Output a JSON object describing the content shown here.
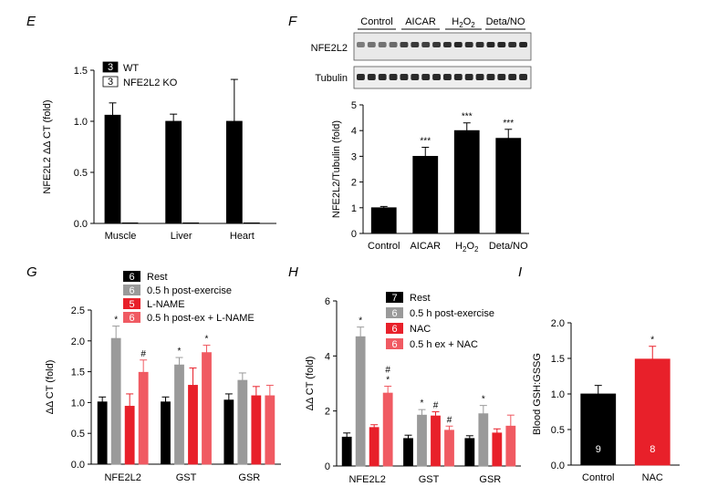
{
  "chart_data": [
    {
      "panel": "E",
      "type": "bar",
      "ylabel": "NFE2L2 ΔΔ CT (fold)",
      "ylim": [
        0,
        1.5
      ],
      "yticks": [
        "0.0",
        "0.5",
        "1.0",
        "1.5"
      ],
      "categories": [
        "Muscle",
        "Liver",
        "Heart"
      ],
      "series": [
        {
          "name": "WT",
          "n": "3",
          "color": "#000000",
          "values": [
            1.06,
            1.0,
            1.0
          ],
          "errors": [
            0.12,
            0.07,
            0.41
          ]
        },
        {
          "name": "NFE2L2 KO",
          "n": "3",
          "color": "#ffffff",
          "values": [
            0.005,
            0.005,
            0.005
          ],
          "errors": [
            0,
            0,
            0
          ]
        }
      ],
      "legend": "top-left"
    },
    {
      "panel": "F",
      "type": "bar",
      "blot_groups": [
        "Control",
        "AICAR",
        "H2O2",
        "Deta/NO"
      ],
      "blot_rows": [
        "NFE2L2",
        "Tubulin"
      ],
      "ylabel": "NFE2L2/Tubulin (fold)",
      "ylim": [
        0,
        5
      ],
      "yticks": [
        "0",
        "1",
        "2",
        "3",
        "4",
        "5"
      ],
      "categories": [
        "Control",
        "AICAR",
        "H2O2",
        "Deta/NO"
      ],
      "values": [
        1.0,
        3.0,
        4.0,
        3.7
      ],
      "errors": [
        0.05,
        0.35,
        0.3,
        0.35
      ],
      "annotations": [
        "",
        "***",
        "***",
        "***"
      ]
    },
    {
      "panel": "G",
      "type": "bar",
      "ylabel": "ΔΔ CT (fold)",
      "ylim": [
        0,
        2.5
      ],
      "yticks": [
        "0.0",
        "0.5",
        "1.0",
        "1.5",
        "2.0",
        "2.5"
      ],
      "categories": [
        "NFE2L2",
        "GST",
        "GSR"
      ],
      "series": [
        {
          "name": "Rest",
          "n": "6",
          "color": "#000000",
          "values": [
            1.01,
            1.01,
            1.04
          ],
          "errors": [
            0.08,
            0.08,
            0.1
          ],
          "annotations": [
            "",
            "",
            ""
          ]
        },
        {
          "name": "0.5 h post-exercise",
          "n": "6",
          "color": "#9a9a9a",
          "values": [
            2.04,
            1.61,
            1.36
          ],
          "errors": [
            0.2,
            0.12,
            0.12
          ],
          "annotations": [
            "*",
            "*",
            ""
          ]
        },
        {
          "name": "L-NAME",
          "n": "5",
          "color": "#e8202a",
          "values": [
            0.94,
            1.28,
            1.11
          ],
          "errors": [
            0.2,
            0.28,
            0.15
          ],
          "annotations": [
            "",
            "",
            ""
          ]
        },
        {
          "name": "0.5 h post-ex + L-NAME",
          "n": "6",
          "color": "#f05a62",
          "values": [
            1.49,
            1.81,
            1.11
          ],
          "errors": [
            0.2,
            0.12,
            0.17
          ],
          "annotations": [
            "#",
            "*",
            ""
          ]
        }
      ]
    },
    {
      "panel": "H",
      "type": "bar",
      "ylabel": "ΔΔ CT (fold)",
      "ylim": [
        0,
        6
      ],
      "yticks": [
        "0",
        "2",
        "4",
        "6"
      ],
      "categories": [
        "NFE2L2",
        "GST",
        "GSR"
      ],
      "series": [
        {
          "name": "Rest",
          "n": "7",
          "color": "#000000",
          "values": [
            1.05,
            1.0,
            1.0
          ],
          "errors": [
            0.15,
            0.12,
            0.1
          ],
          "annotations": [
            "",
            "",
            ""
          ]
        },
        {
          "name": "0.5 h post-exercise",
          "n": "6",
          "color": "#9a9a9a",
          "values": [
            4.7,
            1.85,
            1.9
          ],
          "errors": [
            0.35,
            0.2,
            0.3
          ],
          "annotations": [
            "*",
            "*",
            "*"
          ]
        },
        {
          "name": "NAC",
          "n": "6",
          "color": "#e8202a",
          "values": [
            1.4,
            1.82,
            1.2
          ],
          "errors": [
            0.1,
            0.15,
            0.15
          ],
          "annotations": [
            "",
            "#",
            ""
          ]
        },
        {
          "name": "0.5 h ex + NAC",
          "n": "6",
          "color": "#f05a62",
          "values": [
            2.65,
            1.3,
            1.45
          ],
          "errors": [
            0.25,
            0.15,
            0.4
          ],
          "annotations": [
            "#\n*",
            "#",
            ""
          ]
        }
      ]
    },
    {
      "panel": "I",
      "type": "bar",
      "ylabel": "Blood GSH:GSSG",
      "ylim": [
        0,
        2.0
      ],
      "yticks": [
        "0.0",
        "0.5",
        "1.0",
        "1.5",
        "2.0"
      ],
      "categories": [
        "Control",
        "NAC"
      ],
      "values": [
        1.0,
        1.49
      ],
      "errors": [
        0.12,
        0.18
      ],
      "colors": [
        "#000000",
        "#e8202a"
      ],
      "n": [
        "9",
        "8"
      ],
      "annotations": [
        "",
        "*"
      ]
    }
  ]
}
